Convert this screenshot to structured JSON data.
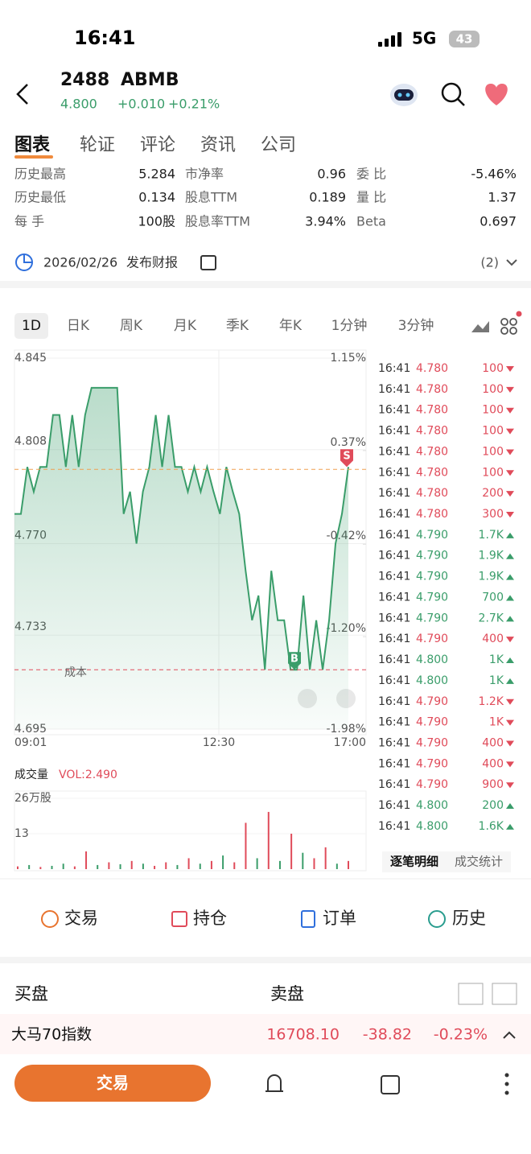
{
  "status": {
    "time": "16:41",
    "network": "5G",
    "battery": "43"
  },
  "header": {
    "code": "2488",
    "name": "ABMB",
    "price": "4.800",
    "change": "+0.010",
    "percent": "+0.21%"
  },
  "tabs": [
    "图表",
    "轮证",
    "评论",
    "资讯",
    "公司"
  ],
  "stats": [
    [
      [
        "历史最高",
        "5.284"
      ],
      [
        "市净率",
        "0.96"
      ],
      [
        "委 比",
        "-5.46%"
      ]
    ],
    [
      [
        "历史最低",
        "0.134"
      ],
      [
        "股息TTM",
        "0.189"
      ],
      [
        "量 比",
        "1.37"
      ]
    ],
    [
      [
        "每 手",
        "100股"
      ],
      [
        "股息率TTM",
        "3.94%"
      ],
      [
        "Beta",
        "0.697"
      ]
    ]
  ],
  "event": {
    "date": "2026/02/26",
    "text": "发布财报",
    "count": "(2)"
  },
  "periods": [
    "1D",
    "日K",
    "周K",
    "月K",
    "季K",
    "年K",
    "1分钟",
    "3分钟"
  ],
  "price_chart": {
    "type": "line",
    "color": "#3a9d6a",
    "values": [
      4.782,
      4.782,
      4.801,
      4.791,
      4.801,
      4.801,
      4.822,
      4.822,
      4.801,
      4.822,
      4.801,
      4.822,
      4.833,
      4.833,
      4.833,
      4.833,
      4.833,
      4.782,
      4.791,
      4.77,
      4.791,
      4.801,
      4.822,
      4.801,
      4.822,
      4.801,
      4.801,
      4.791,
      4.801,
      4.791,
      4.801,
      4.791,
      4.782,
      4.801,
      4.791,
      4.782,
      4.759,
      4.739,
      4.749,
      4.719,
      4.759,
      4.739,
      4.739,
      4.719,
      4.719,
      4.749,
      4.719,
      4.739,
      4.719,
      4.739,
      4.77,
      4.782,
      4.801
    ],
    "ylim": [
      4.695,
      4.845
    ],
    "yticks": [
      4.845,
      4.808,
      {
        "value": 4.77,
        "label": "4.770"
      },
      4.733,
      4.695
    ],
    "y2lim": [
      -1.98,
      1.15
    ],
    "y2ticks": [
      {
        "value": 1.15,
        "label": "1.15%"
      },
      {
        "value": 0.37,
        "label": "0.37%"
      },
      {
        "value": -0.42,
        "label": "-0.42%"
      },
      {
        "value": -1.2,
        "label": "-1.20%"
      },
      {
        "value": -1.98,
        "label": "-1.98%"
      }
    ],
    "x_labels": [
      "09:01",
      "12:30",
      "17:00"
    ],
    "last_line": 4.8,
    "cost_line": 4.719,
    "cost_label": "成本",
    "sell_marker": {
      "label": "S",
      "value": 4.801
    },
    "buy_marker": {
      "label": "B",
      "value": 4.719
    }
  },
  "volume_chart": {
    "type": "bar",
    "title": "成交量",
    "vol_label": "VOL:2.490",
    "values": [
      1,
      1.5,
      0.8,
      1.2,
      2,
      1,
      6.5,
      1.5,
      2.5,
      1.8,
      3,
      2,
      1.2,
      2.5,
      1.5,
      4,
      2,
      3,
      5,
      2.5,
      17,
      4,
      21,
      3,
      13,
      6,
      4,
      8,
      2,
      3
    ],
    "colors": [
      "#e04b5a",
      "#3a9d6a",
      "#e04b5a",
      "#3a9d6a",
      "#3a9d6a",
      "#e04b5a",
      "#e04b5a",
      "#3a9d6a",
      "#e04b5a",
      "#3a9d6a",
      "#e04b5a",
      "#3a9d6a",
      "#e04b5a",
      "#e04b5a",
      "#3a9d6a",
      "#e04b5a",
      "#3a9d6a",
      "#e04b5a",
      "#3a9d6a",
      "#e04b5a",
      "#e04b5a",
      "#3a9d6a",
      "#e04b5a",
      "#3a9d6a",
      "#e04b5a",
      "#3a9d6a",
      "#e04b5a",
      "#e04b5a",
      "#3a9d6a",
      "#e04b5a"
    ],
    "ylim": [
      0,
      26
    ],
    "yticks": [
      {
        "value": 26,
        "label": "26万股"
      },
      13
    ]
  },
  "trades": [
    [
      "16:41",
      "4.780",
      "100",
      "down"
    ],
    [
      "16:41",
      "4.780",
      "100",
      "down"
    ],
    [
      "16:41",
      "4.780",
      "100",
      "down"
    ],
    [
      "16:41",
      "4.780",
      "100",
      "down"
    ],
    [
      "16:41",
      "4.780",
      "100",
      "down"
    ],
    [
      "16:41",
      "4.780",
      "100",
      "down"
    ],
    [
      "16:41",
      "4.780",
      "200",
      "down"
    ],
    [
      "16:41",
      "4.780",
      "300",
      "down"
    ],
    [
      "16:41",
      "4.790",
      "1.7K",
      "up"
    ],
    [
      "16:41",
      "4.790",
      "1.9K",
      "up"
    ],
    [
      "16:41",
      "4.790",
      "1.9K",
      "up"
    ],
    [
      "16:41",
      "4.790",
      "700",
      "up"
    ],
    [
      "16:41",
      "4.790",
      "2.7K",
      "up"
    ],
    [
      "16:41",
      "4.790",
      "400",
      "down"
    ],
    [
      "16:41",
      "4.800",
      "1K",
      "up"
    ],
    [
      "16:41",
      "4.800",
      "1K",
      "up"
    ],
    [
      "16:41",
      "4.790",
      "1.2K",
      "down"
    ],
    [
      "16:41",
      "4.790",
      "1K",
      "down"
    ],
    [
      "16:41",
      "4.790",
      "400",
      "down"
    ],
    [
      "16:41",
      "4.790",
      "400",
      "down"
    ],
    [
      "16:41",
      "4.790",
      "900",
      "down"
    ],
    [
      "16:41",
      "4.800",
      "200",
      "up"
    ],
    [
      "16:41",
      "4.800",
      "1.6K",
      "up"
    ]
  ],
  "trade_tabs": [
    "逐笔明细",
    "成交统计"
  ],
  "actions": [
    "交易",
    "持仓",
    "订单",
    "历史"
  ],
  "orderbook": {
    "bid": "买盘",
    "ask": "卖盘"
  },
  "index": {
    "name": "大马70指数",
    "value": "16708.10",
    "change": "-38.82",
    "percent": "-0.23%"
  },
  "bottom_button": "交易"
}
